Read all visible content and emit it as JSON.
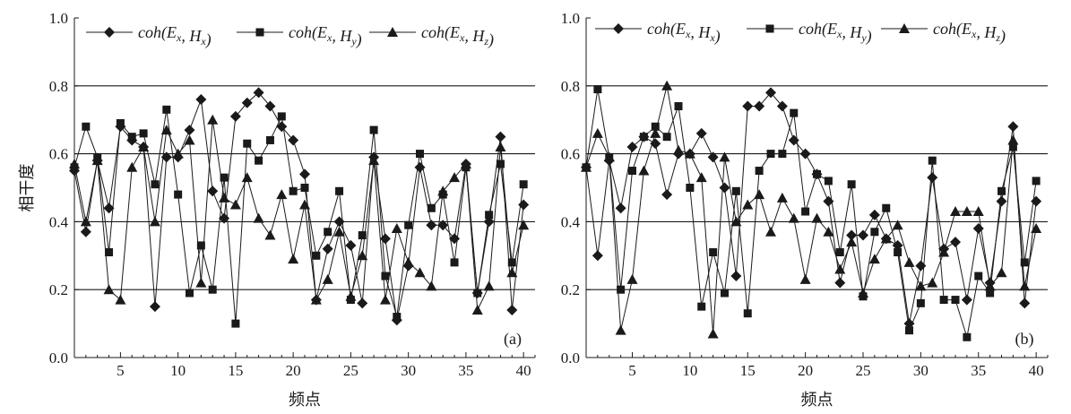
{
  "chart_data": [
    {
      "type": "line",
      "panel_label": "(a)",
      "xlabel": "频点",
      "ylabel": "相干度",
      "xlim": [
        1,
        41
      ],
      "ylim": [
        0,
        1.0
      ],
      "x_ticks": [
        "5",
        "10",
        "15",
        "20",
        "25",
        "30",
        "35",
        "40"
      ],
      "y_ticks": [
        "0.0",
        "0.2",
        "0.4",
        "0.6",
        "0.8",
        "1.0"
      ],
      "grid": "horizontal at 0.2, 0.4, 0.6, 0.8",
      "legend_position": "top-left",
      "x": [
        1,
        2,
        3,
        4,
        5,
        6,
        7,
        8,
        9,
        10,
        11,
        12,
        13,
        14,
        15,
        16,
        17,
        18,
        19,
        20,
        21,
        22,
        23,
        24,
        25,
        26,
        27,
        28,
        29,
        30,
        31,
        32,
        33,
        34,
        35,
        36,
        37,
        38,
        39,
        40
      ],
      "series": [
        {
          "legend_func": "coh(E",
          "legend_sub1": "x",
          "legend_mid": ", H",
          "legend_sub2": "x",
          "legend_end": ")",
          "marker": "diamond",
          "values": [
            0.55,
            0.37,
            0.58,
            0.44,
            0.68,
            0.64,
            0.62,
            0.15,
            0.59,
            0.59,
            0.67,
            0.76,
            0.49,
            0.41,
            0.71,
            0.75,
            0.78,
            0.74,
            0.68,
            0.64,
            0.54,
            0.17,
            0.32,
            0.4,
            0.33,
            0.16,
            0.59,
            0.35,
            0.11,
            0.27,
            0.56,
            0.39,
            0.39,
            0.35,
            0.57,
            0.19,
            0.4,
            0.65,
            0.14,
            0.45
          ]
        },
        {
          "legend_func": "coh(E",
          "legend_sub1": "x",
          "legend_mid": ", H",
          "legend_sub2": "y",
          "legend_end": ")",
          "marker": "square",
          "values": [
            0.56,
            0.68,
            0.59,
            0.31,
            0.69,
            0.65,
            0.66,
            0.51,
            0.73,
            0.48,
            0.19,
            0.33,
            0.2,
            0.53,
            0.1,
            0.63,
            0.58,
            0.64,
            0.71,
            0.49,
            0.5,
            0.3,
            0.37,
            0.49,
            0.17,
            0.36,
            0.67,
            0.24,
            0.12,
            0.39,
            0.6,
            0.44,
            0.48,
            0.28,
            0.56,
            0.19,
            0.42,
            0.57,
            0.28,
            0.51
          ]
        },
        {
          "legend_func": "coh(E",
          "legend_sub1": "x",
          "legend_mid": ", H",
          "legend_sub2": "z",
          "legend_end": ")",
          "marker": "triangle",
          "values": [
            0.57,
            0.4,
            0.58,
            0.2,
            0.17,
            0.56,
            0.62,
            0.4,
            0.67,
            0.6,
            0.64,
            0.22,
            0.7,
            0.47,
            0.45,
            0.53,
            0.41,
            0.36,
            0.48,
            0.29,
            0.45,
            0.17,
            0.23,
            0.37,
            0.18,
            0.3,
            0.58,
            0.17,
            0.38,
            0.28,
            0.25,
            0.21,
            0.49,
            0.53,
            0.57,
            0.14,
            0.21,
            0.62,
            0.25,
            0.39
          ]
        }
      ]
    },
    {
      "type": "line",
      "panel_label": "(b)",
      "xlabel": "频点",
      "xlim": [
        1,
        41
      ],
      "ylim": [
        0,
        1.0
      ],
      "x_ticks": [
        "5",
        "10",
        "15",
        "20",
        "25",
        "30",
        "35",
        "40"
      ],
      "y_ticks": [
        "0.0",
        "0.2",
        "0.4",
        "0.6",
        "0.8",
        "1.0"
      ],
      "grid": "horizontal at 0.2, 0.4, 0.6, 0.8",
      "legend_position": "top-left",
      "x": [
        1,
        2,
        3,
        4,
        5,
        6,
        7,
        8,
        9,
        10,
        11,
        12,
        13,
        14,
        15,
        16,
        17,
        18,
        19,
        20,
        21,
        22,
        23,
        24,
        25,
        26,
        27,
        28,
        29,
        30,
        31,
        32,
        33,
        34,
        35,
        36,
        37,
        38,
        39,
        40
      ],
      "series": [
        {
          "legend_func": "coh(E",
          "legend_sub1": "x",
          "legend_mid": ", H",
          "legend_sub2": "x",
          "legend_end": ")",
          "marker": "diamond",
          "values": [
            0.56,
            0.3,
            0.58,
            0.44,
            0.62,
            0.65,
            0.63,
            0.48,
            0.6,
            0.6,
            0.66,
            0.59,
            0.5,
            0.24,
            0.74,
            0.74,
            0.78,
            0.74,
            0.64,
            0.6,
            0.54,
            0.46,
            0.22,
            0.36,
            0.36,
            0.42,
            0.35,
            0.33,
            0.1,
            0.27,
            0.53,
            0.32,
            0.34,
            0.17,
            0.38,
            0.22,
            0.46,
            0.68,
            0.16,
            0.46
          ]
        },
        {
          "legend_func": "coh(E",
          "legend_sub1": "x",
          "legend_mid": ", H",
          "legend_sub2": "y",
          "legend_end": ")",
          "marker": "square",
          "values": [
            0.56,
            0.79,
            0.59,
            0.2,
            0.55,
            0.65,
            0.68,
            0.65,
            0.74,
            0.5,
            0.15,
            0.31,
            0.19,
            0.49,
            0.13,
            0.55,
            0.6,
            0.6,
            0.72,
            0.43,
            0.54,
            0.52,
            0.31,
            0.51,
            0.18,
            0.37,
            0.44,
            0.31,
            0.08,
            0.16,
            0.58,
            0.17,
            0.17,
            0.06,
            0.24,
            0.19,
            0.49,
            0.62,
            0.28,
            0.52
          ]
        },
        {
          "legend_func": "coh(E",
          "legend_sub1": "x",
          "legend_mid": ", H",
          "legend_sub2": "z",
          "legend_end": ")",
          "marker": "triangle",
          "values": [
            0.56,
            0.66,
            0.59,
            0.08,
            0.23,
            0.55,
            0.66,
            0.8,
            0.61,
            0.6,
            0.53,
            0.07,
            0.59,
            0.4,
            0.45,
            0.48,
            0.37,
            0.47,
            0.41,
            0.23,
            0.41,
            0.37,
            0.26,
            0.34,
            0.19,
            0.29,
            0.35,
            0.39,
            0.28,
            0.21,
            0.22,
            0.31,
            0.43,
            0.43,
            0.43,
            0.21,
            0.25,
            0.64,
            0.21,
            0.38
          ]
        }
      ]
    }
  ]
}
